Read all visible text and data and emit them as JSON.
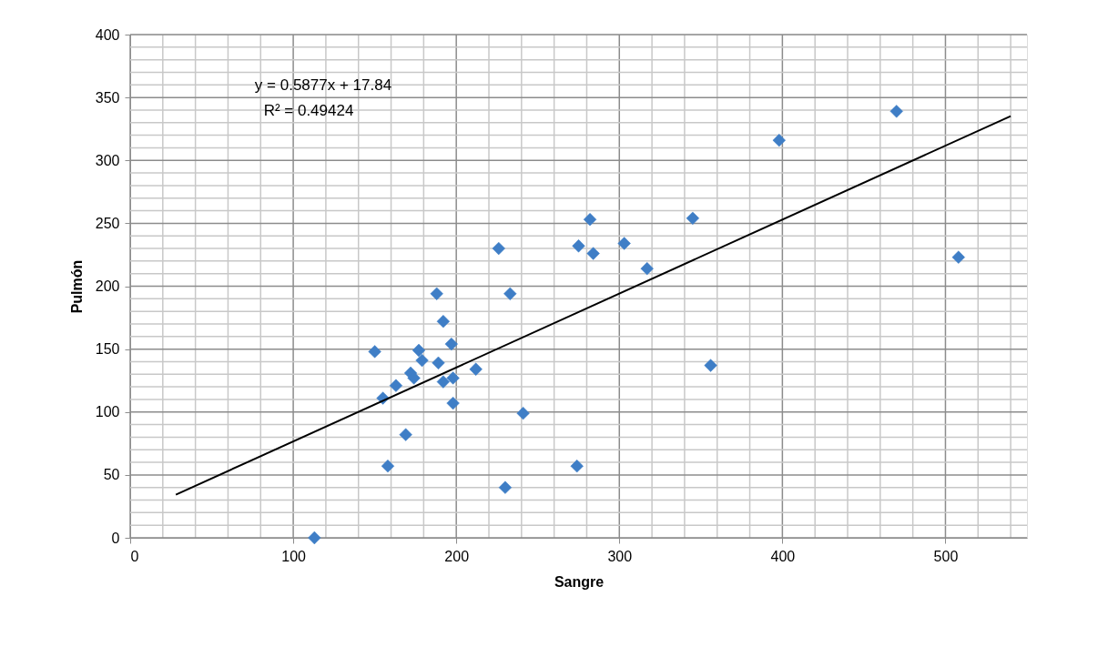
{
  "chart_data": {
    "type": "scatter",
    "xlabel": "Sangre",
    "ylabel": "Pulmón",
    "annotations": [
      "y = 0.5877x + 17.84",
      "R² = 0.49424"
    ],
    "xlim": [
      0,
      550
    ],
    "xticks": [
      0,
      {
        "value": 20,
        "label": null
      },
      {
        "value": 40,
        "label": null
      },
      {
        "value": 60,
        "label": null
      },
      {
        "value": 80,
        "label": null
      },
      100,
      {
        "value": 120,
        "label": null
      },
      {
        "value": 140,
        "label": null
      },
      {
        "value": 160,
        "label": null
      },
      {
        "value": 180,
        "label": null
      },
      200,
      {
        "value": 220,
        "label": null
      },
      {
        "value": 240,
        "label": null
      },
      {
        "value": 260,
        "label": null
      },
      {
        "value": 280,
        "label": null
      },
      300,
      {
        "value": 320,
        "label": null
      },
      {
        "value": 340,
        "label": null
      },
      {
        "value": 360,
        "label": null
      },
      {
        "value": 380,
        "label": null
      },
      400,
      {
        "value": 420,
        "label": null
      },
      {
        "value": 440,
        "label": null
      },
      {
        "value": 460,
        "label": null
      },
      {
        "value": 480,
        "label": null
      },
      500,
      {
        "value": 520,
        "label": null
      },
      {
        "value": 540,
        "label": null
      }
    ],
    "ylim": [
      0,
      400
    ],
    "yticks": [
      0,
      {
        "value": 10,
        "label": null
      },
      {
        "value": 20,
        "label": null
      },
      {
        "value": 30,
        "label": null
      },
      {
        "value": 40,
        "label": null
      },
      50,
      {
        "value": 60,
        "label": null
      },
      {
        "value": 70,
        "label": null
      },
      {
        "value": 80,
        "label": null
      },
      {
        "value": 90,
        "label": null
      },
      100,
      {
        "value": 110,
        "label": null
      },
      {
        "value": 120,
        "label": null
      },
      {
        "value": 130,
        "label": null
      },
      {
        "value": 140,
        "label": null
      },
      150,
      {
        "value": 160,
        "label": null
      },
      {
        "value": 170,
        "label": null
      },
      {
        "value": 180,
        "label": null
      },
      {
        "value": 190,
        "label": null
      },
      200,
      {
        "value": 210,
        "label": null
      },
      {
        "value": 220,
        "label": null
      },
      {
        "value": 230,
        "label": null
      },
      {
        "value": 240,
        "label": null
      },
      250,
      {
        "value": 260,
        "label": null
      },
      {
        "value": 270,
        "label": null
      },
      {
        "value": 280,
        "label": null
      },
      {
        "value": 290,
        "label": null
      },
      300,
      {
        "value": 310,
        "label": null
      },
      {
        "value": 320,
        "label": null
      },
      {
        "value": 330,
        "label": null
      },
      {
        "value": 340,
        "label": null
      },
      350,
      {
        "value": 360,
        "label": null
      },
      {
        "value": 370,
        "label": null
      },
      {
        "value": 380,
        "label": null
      },
      {
        "value": 390,
        "label": null
      },
      400
    ],
    "grid": true,
    "legend": false,
    "marker": "diamond",
    "series": [
      {
        "color": "#3f7ec6",
        "x": [
          113,
          150,
          188,
          192,
          197,
          177,
          179,
          189,
          172,
          174,
          163,
          155,
          192,
          198,
          212,
          198,
          169,
          158,
          230,
          241,
          226,
          233,
          274,
          282,
          275,
          284,
          345,
          303,
          317,
          356,
          398,
          470,
          508
        ],
        "values": [
          0,
          148,
          194,
          172,
          154,
          149,
          141,
          139,
          131,
          127,
          121,
          111,
          124,
          127,
          134,
          107,
          82,
          57,
          40,
          99,
          230,
          194,
          57,
          253,
          232,
          226,
          254,
          234,
          214,
          137,
          316,
          339,
          223
        ]
      },
      {
        "type": "line",
        "color": "#000000",
        "line_style": "solid",
        "marker": "none",
        "x": [
          28,
          540
        ],
        "values": [
          34.3,
          335.2
        ]
      }
    ]
  }
}
